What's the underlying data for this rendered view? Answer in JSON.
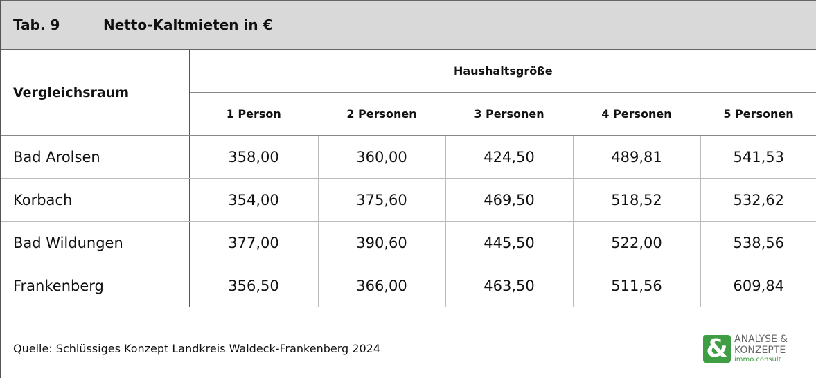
{
  "header": {
    "label": "Tab. 9",
    "title": "Netto-Kaltmieten in €"
  },
  "table": {
    "row_header": "Vergleichsraum",
    "group_header": "Haushaltsgröße",
    "columns": [
      "1 Person",
      "2 Personen",
      "3 Personen",
      "4 Personen",
      "5 Personen"
    ],
    "rows": [
      [
        "Bad Arolsen",
        "358,00",
        "360,00",
        "424,50",
        "489,81",
        "541,53"
      ],
      [
        "Korbach",
        "354,00",
        "375,60",
        "469,50",
        "518,52",
        "532,62"
      ],
      [
        "Bad Wildungen",
        "377,00",
        "390,60",
        "445,50",
        "522,00",
        "538,56"
      ],
      [
        "Frankenberg",
        "356,50",
        "366,00",
        "463,50",
        "511,56",
        "609,84"
      ]
    ]
  },
  "footer": {
    "source": "Quelle: Schlüssiges Konzept Landkreis Waldeck-Frankenberg 2024"
  },
  "logo": {
    "symbol": "&",
    "line1": "ANALYSE &",
    "line2": "KONZEPTE",
    "line3": "immo.consult"
  }
}
